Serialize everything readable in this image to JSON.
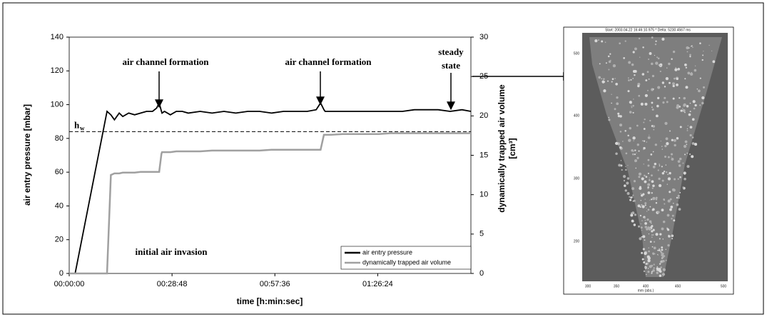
{
  "chart_data": {
    "type": "line",
    "xlabel": "time [h:min:sec]",
    "ylabel": "air entry pressure [mbar]",
    "y2label": [
      "dynamically trapped air volume",
      "[cm³]"
    ],
    "x": [
      0,
      100,
      636,
      700,
      760,
      840,
      900,
      1000,
      1100,
      1200,
      1300,
      1400,
      1470,
      1512,
      1550,
      1560,
      1600,
      1700,
      1800,
      1900,
      2000,
      2200,
      2400,
      2600,
      2800,
      3000,
      3200,
      3400,
      3600,
      3800,
      4000,
      4150,
      4224,
      4280,
      4300,
      4400,
      4600,
      4800,
      5000,
      5200,
      5400,
      5600,
      5800,
      6000,
      6200,
      6400,
      6600,
      6750
    ],
    "xlim": [
      0,
      6750
    ],
    "xticks": [
      {
        "value": 0,
        "label": "00:00:00"
      },
      {
        "value": 1728,
        "label": "00:28:48"
      },
      {
        "value": 3456,
        "label": "00:57:36"
      },
      {
        "value": 5184,
        "label": "01:26:24"
      }
    ],
    "ylim": [
      0,
      140
    ],
    "yticks": [
      0,
      20,
      40,
      60,
      80,
      100,
      120,
      140
    ],
    "y2lim": [
      0,
      30
    ],
    "y2ticks": [
      0,
      5,
      10,
      15,
      20,
      25,
      30
    ],
    "series": [
      {
        "name": "air entry pressure",
        "color": "#000000",
        "values": [
          0,
          0,
          96,
          94,
          91,
          95,
          93,
          95,
          94,
          95,
          96,
          96,
          98,
          101,
          96,
          95,
          96,
          94,
          96,
          96,
          95,
          96,
          95,
          96,
          95,
          96,
          96,
          95,
          96,
          96,
          96,
          97,
          101,
          97,
          96,
          96,
          96,
          96,
          96,
          96,
          96,
          96,
          97,
          97,
          97,
          96,
          97,
          96
        ]
      },
      {
        "name": "dynamically trapped air volume",
        "color": "#a0a0a0",
        "axis": "y2",
        "values": [
          0,
          0,
          0,
          12.5,
          12.7,
          12.7,
          12.8,
          12.8,
          12.8,
          12.9,
          12.9,
          12.9,
          12.9,
          12.9,
          15.2,
          15.4,
          15.4,
          15.4,
          15.5,
          15.5,
          15.5,
          15.5,
          15.6,
          15.6,
          15.6,
          15.6,
          15.6,
          15.7,
          15.7,
          15.7,
          15.7,
          15.7,
          15.7,
          17.6,
          17.6,
          17.6,
          17.7,
          17.7,
          17.7,
          17.7,
          17.8,
          17.8,
          17.8,
          17.8,
          17.8,
          17.8,
          17.8,
          17.8
        ]
      }
    ],
    "reference_line": 84,
    "reference_label": "h",
    "reference_subscript": "w",
    "annotations": [
      "air channel formation",
      "air channel formation",
      "steady",
      "state",
      "initial air invasion"
    ],
    "legend": "lower right"
  },
  "image_panel": {
    "header": "Start: 2003.04.22 16:46:10.975 * Delta: 5230.4567 ms",
    "yticks": [
      "500",
      "400",
      "300",
      "200"
    ],
    "xticks": [
      "300",
      "350",
      "400",
      "450",
      "500"
    ],
    "xlabel": "mm (abs.)"
  }
}
